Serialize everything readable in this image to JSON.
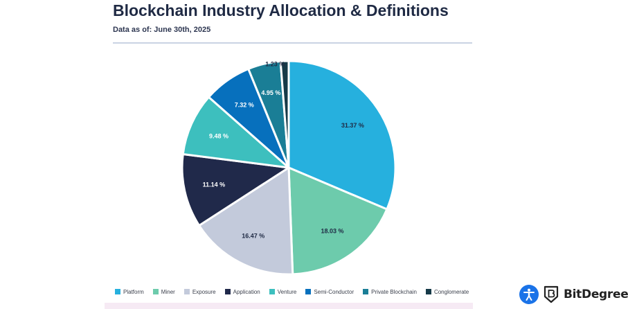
{
  "header": {
    "title": "Blockchain Industry Allocation & Definitions",
    "subtitle": "Data as of: June 30th, 2025"
  },
  "chart_data": {
    "type": "pie",
    "title": "",
    "slices": [
      {
        "label": "Platform",
        "value": 31.37,
        "display": "31.37 %",
        "color": "#26b0de"
      },
      {
        "label": "Miner",
        "value": 18.03,
        "display": "18.03 %",
        "color": "#6dcbac"
      },
      {
        "label": "Exposure",
        "value": 16.47,
        "display": "16.47 %",
        "color": "#c3cadb"
      },
      {
        "label": "Application",
        "value": 11.14,
        "display": "11.14 %",
        "color": "#20294a"
      },
      {
        "label": "Venture",
        "value": 9.48,
        "display": "9.48 %",
        "color": "#3dbfbe"
      },
      {
        "label": "Semi-Conductor",
        "value": 7.32,
        "display": "7.32 %",
        "color": "#0770bd"
      },
      {
        "label": "Private Blockchain",
        "value": 4.95,
        "display": "4.95 %",
        "color": "#1a7e96"
      },
      {
        "label": "Conglomerate",
        "value": 1.23,
        "display": "1.23 %",
        "color": "#163a48"
      }
    ],
    "legend_position": "bottom"
  },
  "brand": {
    "name": "BitDegree",
    "accessibility_icon": "accessibility-icon",
    "logo_icon": "bitdegree-shield-icon"
  }
}
